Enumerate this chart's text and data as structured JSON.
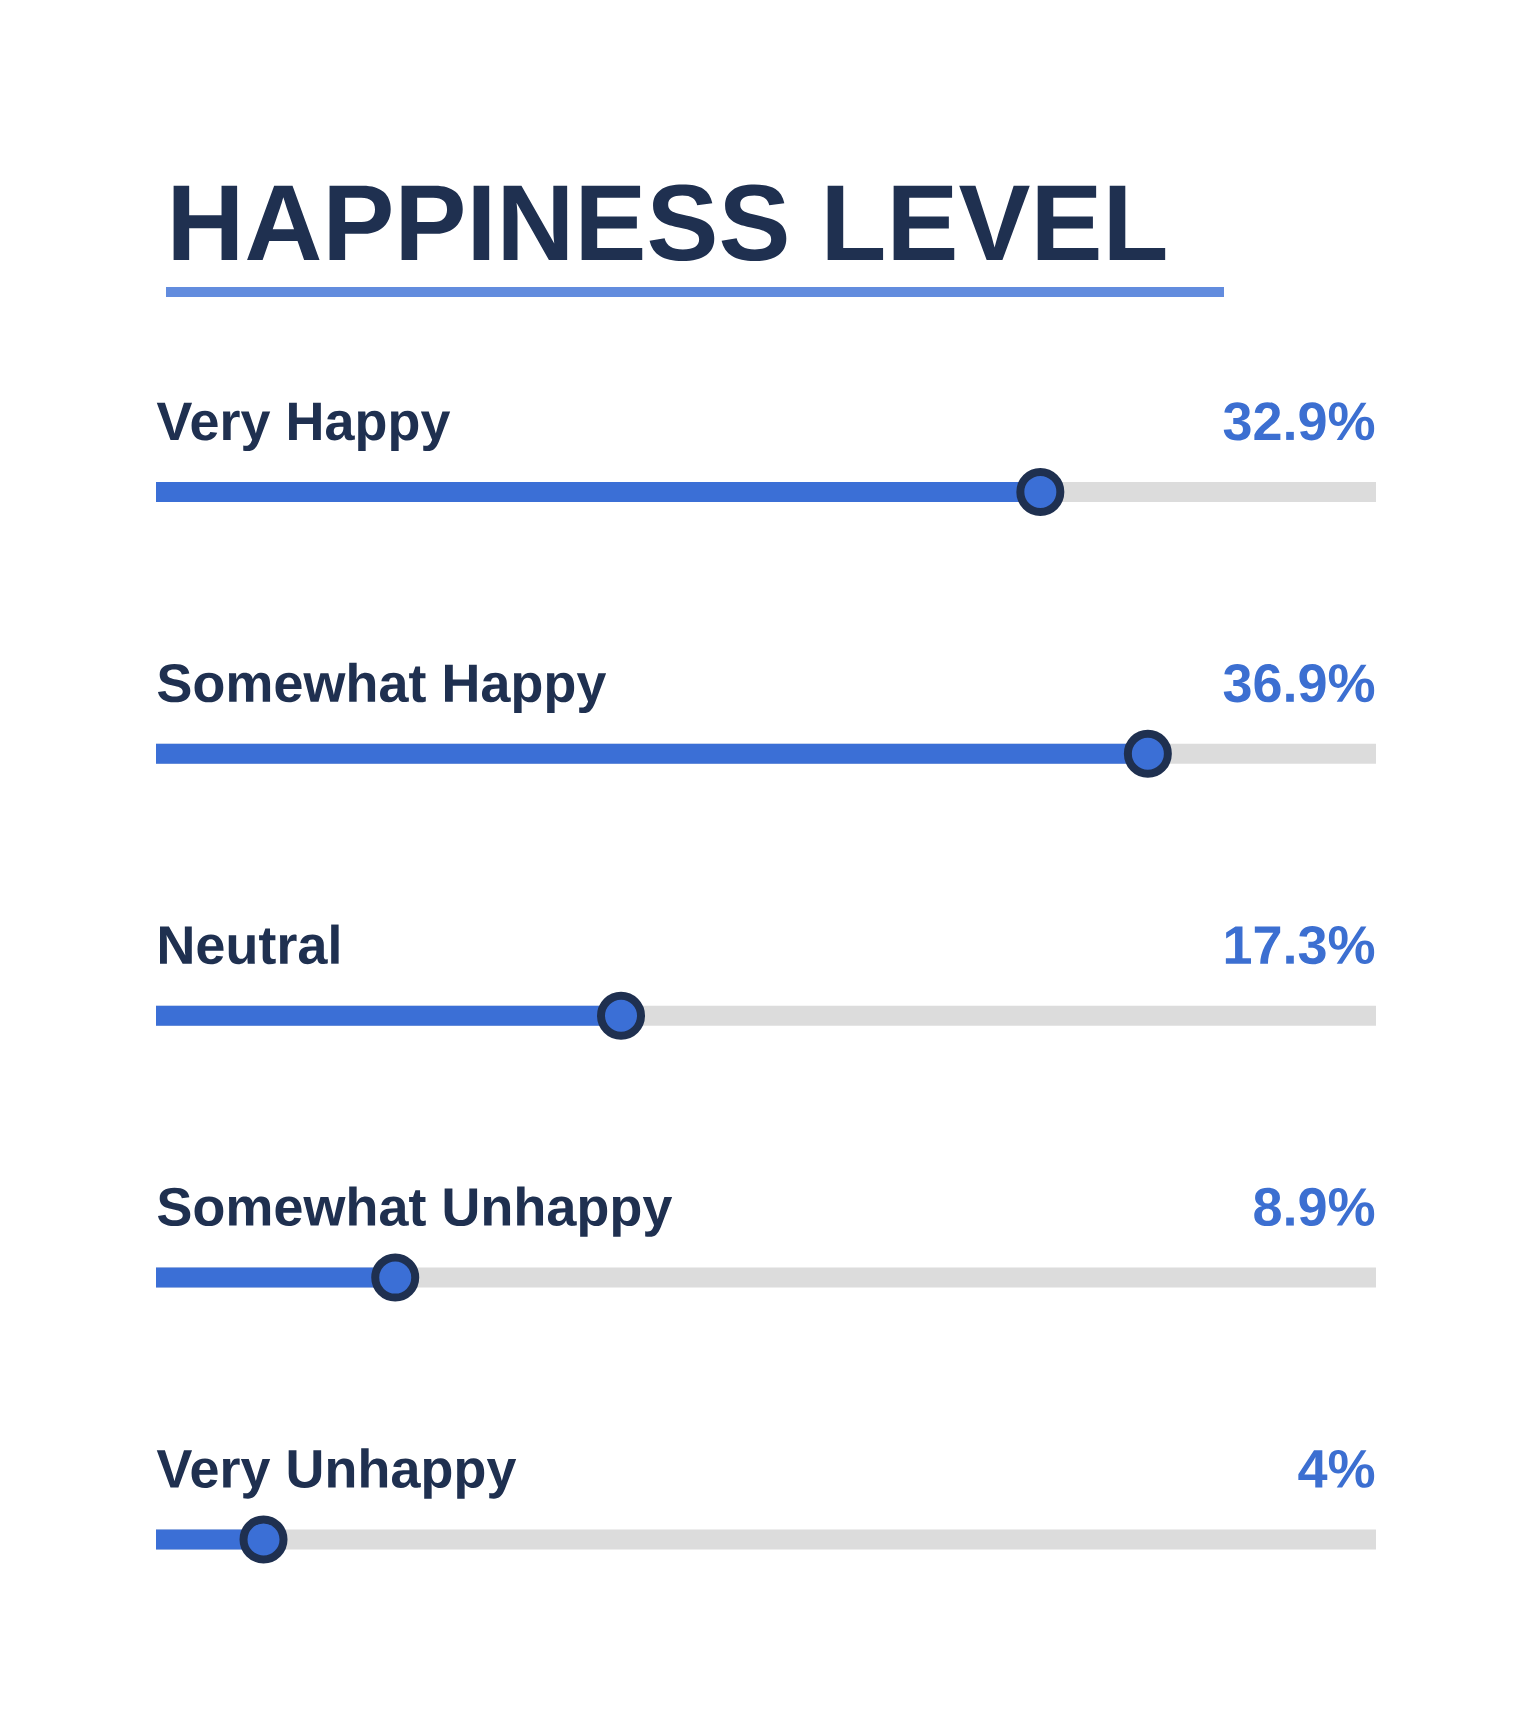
{
  "chart_data": {
    "type": "lollipop",
    "orientation": "horizontal",
    "title": "HAPPINESS LEVEL",
    "categories": [
      "Very Happy",
      "Somewhat Happy",
      "Neutral",
      "Somewhat Unhappy",
      "Very Unhappy"
    ],
    "values": [
      32.9,
      36.9,
      17.3,
      8.9,
      4
    ],
    "value_labels": [
      "32.9%",
      "36.9%",
      "17.3%",
      "8.9%",
      "4%"
    ],
    "color": "#3b6fd6",
    "marker": "circle",
    "tick_labels": false
  }
}
